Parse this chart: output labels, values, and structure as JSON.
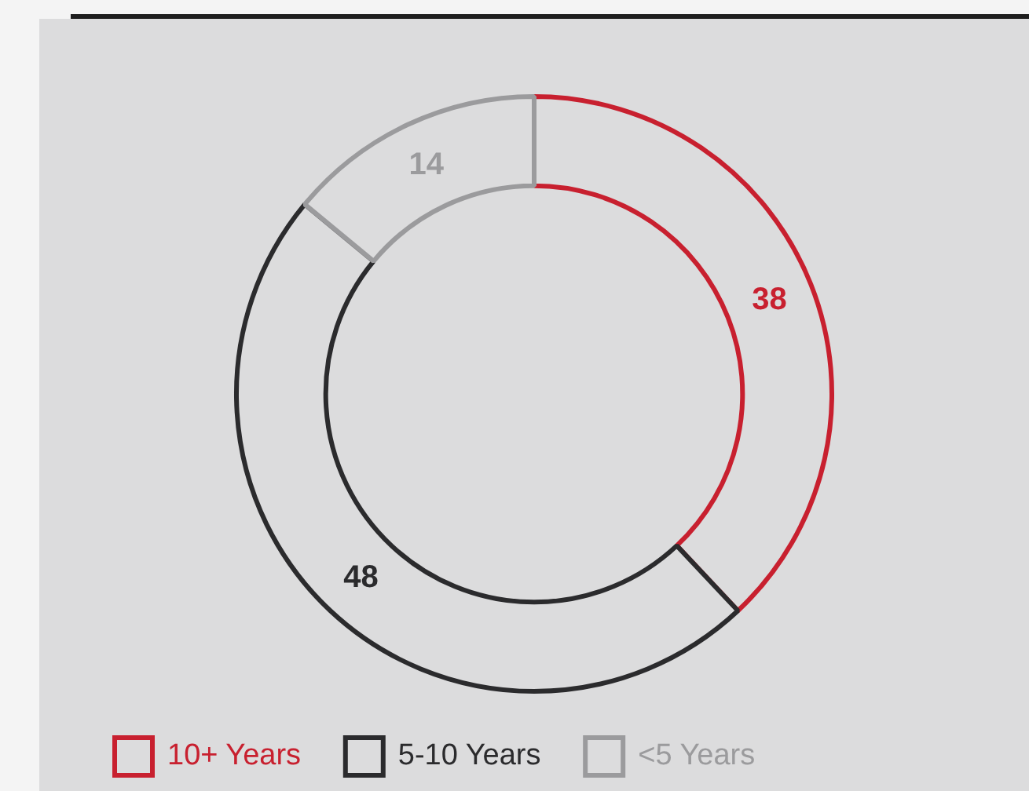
{
  "chart_data": {
    "type": "donut",
    "categories": [
      "10+ Years",
      "5-10 Years",
      "<5 Years"
    ],
    "values": [
      38,
      48,
      14
    ],
    "colors": [
      "#c8202f",
      "#2b2b2d",
      "#9b9b9d"
    ],
    "data_labels": true,
    "legend": "bottom"
  }
}
